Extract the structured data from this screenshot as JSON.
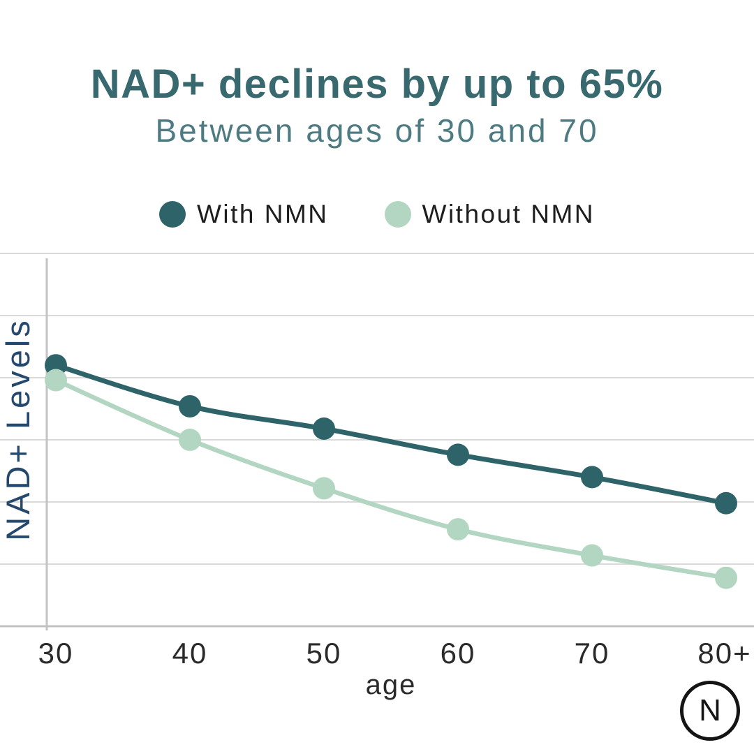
{
  "header": {
    "title": "NAD+ declines by up to 65%",
    "subtitle": "Between ages of 30 and 70"
  },
  "chart_data": {
    "type": "line",
    "categories": [
      "30",
      "40",
      "50",
      "60",
      "70",
      "80+"
    ],
    "series": [
      {
        "name": "With NMN",
        "color": "#2e6469",
        "values": [
          70,
          59,
          53,
          46,
          40,
          33
        ]
      },
      {
        "name": "Without NMN",
        "color": "#b2d6c2",
        "values": [
          66,
          50,
          37,
          26,
          19,
          13
        ]
      }
    ],
    "title": "NAD+ declines by up to 65%",
    "subtitle": "Between ages of 30 and 70",
    "xlabel": "age",
    "ylabel": "NAD+ Levels",
    "ylim": [
      0,
      100
    ],
    "grid": true,
    "legend_position": "top"
  },
  "theme": {
    "title": "#37696f",
    "subtitle": "#4d7b81",
    "legend-text": "#1d1d1d",
    "tick": "#2a2a2a",
    "axis-label": "#24486e",
    "grid": "#d9d9d9",
    "axis": "#c3c3c3",
    "logo": "#141414"
  },
  "footer": {
    "logo_letter": "N"
  }
}
